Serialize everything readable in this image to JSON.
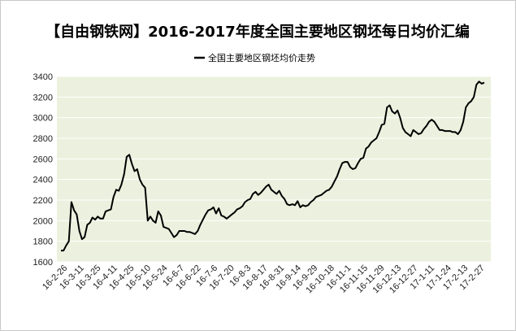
{
  "chart_data": {
    "type": "line",
    "title": "【自由钢铁网】2016-2017年度全国主要地区钢坯每日均价汇编",
    "xlabel": "",
    "ylabel": "",
    "ylim": [
      1600,
      3400
    ],
    "yticks": [
      1600,
      1800,
      2000,
      2200,
      2400,
      2600,
      2800,
      3000,
      3200,
      3400
    ],
    "grid": true,
    "legend_position": "top-center",
    "x_tick_labels": [
      "16-2-26",
      "16-3-11",
      "16-3-25",
      "16-4-11",
      "16-4-25",
      "16-5-10",
      "16-5-24",
      "16-6-7",
      "16-6-22",
      "16-7-6",
      "16-7-20",
      "16-8-3",
      "16-8-17",
      "16-8-31",
      "16-9-14",
      "16-9-29",
      "16-10-18",
      "16-11-1",
      "16-11-15",
      "16-11-29",
      "16-12-13",
      "16-12-27",
      "17-1-11",
      "17-1-24",
      "17-2-13",
      "17-2-27"
    ],
    "colors": {
      "line": "#000000",
      "plot_bg": "#ebf1de",
      "grid": "#ffffff"
    },
    "series": [
      {
        "name": "全国主要地区钢坯均价走势",
        "values": [
          1710,
          1710,
          1760,
          1800,
          2180,
          2100,
          2060,
          1900,
          1820,
          1840,
          1960,
          1980,
          2030,
          2010,
          2040,
          2020,
          2020,
          2090,
          2100,
          2110,
          2230,
          2300,
          2290,
          2350,
          2450,
          2620,
          2640,
          2550,
          2480,
          2500,
          2400,
          2350,
          2320,
          2000,
          2040,
          2000,
          1980,
          2090,
          2050,
          1940,
          1930,
          1920,
          1880,
          1840,
          1860,
          1900,
          1900,
          1900,
          1890,
          1890,
          1880,
          1870,
          1900,
          1960,
          2010,
          2060,
          2100,
          2110,
          2130,
          2070,
          2120,
          2050,
          2040,
          2020,
          2040,
          2060,
          2080,
          2110,
          2120,
          2140,
          2180,
          2200,
          2210,
          2260,
          2280,
          2250,
          2270,
          2300,
          2330,
          2350,
          2300,
          2280,
          2260,
          2290,
          2240,
          2210,
          2160,
          2150,
          2160,
          2150,
          2190,
          2130,
          2150,
          2140,
          2150,
          2180,
          2200,
          2230,
          2240,
          2250,
          2270,
          2290,
          2300,
          2330,
          2380,
          2430,
          2500,
          2560,
          2570,
          2570,
          2520,
          2500,
          2510,
          2560,
          2600,
          2610,
          2700,
          2720,
          2760,
          2780,
          2800,
          2860,
          2930,
          2940,
          3100,
          3120,
          3060,
          3040,
          3070,
          3000,
          2900,
          2860,
          2840,
          2820,
          2880,
          2860,
          2840,
          2850,
          2890,
          2920,
          2960,
          2980,
          2960,
          2920,
          2880,
          2880,
          2870,
          2870,
          2870,
          2860,
          2860,
          2840,
          2880,
          2960,
          3100,
          3140,
          3160,
          3200,
          3320,
          3350,
          3330,
          3340
        ]
      }
    ]
  }
}
